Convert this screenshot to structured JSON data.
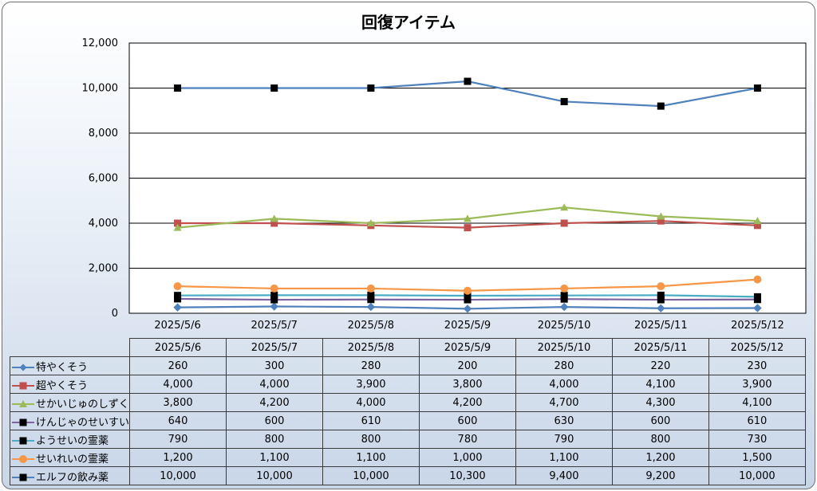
{
  "chart_data": {
    "type": "line",
    "title": "回復アイテム",
    "categories": [
      "2025/5/6",
      "2025/5/7",
      "2025/5/8",
      "2025/5/9",
      "2025/5/10",
      "2025/5/11",
      "2025/5/12"
    ],
    "ylim": [
      0,
      12000
    ],
    "yticks": [
      "0",
      "2,000",
      "4,000",
      "6,000",
      "8,000",
      "10,000",
      "12,000"
    ],
    "ytick_values": [
      0,
      2000,
      4000,
      6000,
      8000,
      10000,
      12000
    ],
    "grid": true,
    "legend_placement": "data-table",
    "series": [
      {
        "name": "特やくそう",
        "color": "#4f81bd",
        "marker": "diamond",
        "values": [
          260,
          300,
          280,
          200,
          280,
          220,
          230
        ],
        "labels": [
          "260",
          "300",
          "280",
          "200",
          "280",
          "220",
          "230"
        ]
      },
      {
        "name": "超やくそう",
        "color": "#c0504d",
        "marker": "square",
        "values": [
          4000,
          4000,
          3900,
          3800,
          4000,
          4100,
          3900
        ],
        "labels": [
          "4,000",
          "4,000",
          "3,900",
          "3,800",
          "4,000",
          "4,100",
          "3,900"
        ]
      },
      {
        "name": "せかいじゅのしずく",
        "color": "#9bbb59",
        "marker": "triangle",
        "values": [
          3800,
          4200,
          4000,
          4200,
          4700,
          4300,
          4100
        ],
        "labels": [
          "3,800",
          "4,200",
          "4,000",
          "4,200",
          "4,700",
          "4,300",
          "4,100"
        ]
      },
      {
        "name": "けんじゃのせいすい",
        "color": "#8064a2",
        "marker": "blacksquare",
        "values": [
          640,
          600,
          610,
          600,
          630,
          600,
          610
        ],
        "labels": [
          "640",
          "600",
          "610",
          "600",
          "630",
          "600",
          "610"
        ]
      },
      {
        "name": "ようせいの霊薬",
        "color": "#4bacc6",
        "marker": "blacksquare",
        "values": [
          790,
          800,
          800,
          780,
          790,
          800,
          730
        ],
        "labels": [
          "790",
          "800",
          "800",
          "780",
          "790",
          "800",
          "730"
        ]
      },
      {
        "name": "せいれいの霊薬",
        "color": "#f79646",
        "marker": "circle",
        "values": [
          1200,
          1100,
          1100,
          1000,
          1100,
          1200,
          1500
        ],
        "labels": [
          "1,200",
          "1,100",
          "1,100",
          "1,000",
          "1,100",
          "1,200",
          "1,500"
        ]
      },
      {
        "name": "エルフの飲み薬",
        "color": "#4f81bd",
        "marker": "blacksquare",
        "values": [
          10000,
          10000,
          10000,
          10300,
          9400,
          9200,
          10000
        ],
        "labels": [
          "10,000",
          "10,000",
          "10,000",
          "10,300",
          "9,400",
          "9,200",
          "10,000"
        ]
      }
    ]
  }
}
